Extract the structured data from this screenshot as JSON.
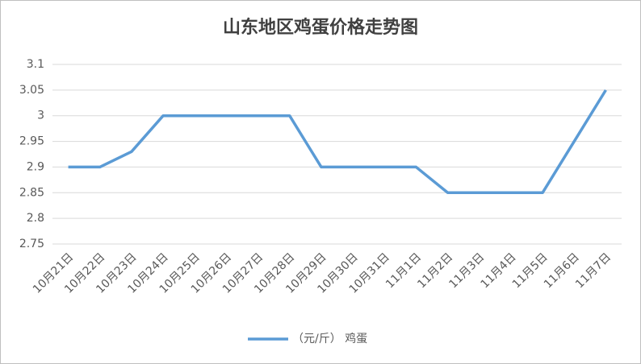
{
  "chart_data": {
    "type": "line",
    "title": "山东地区鸡蛋价格走势图",
    "categories": [
      "10月21日",
      "10月22日",
      "10月23日",
      "10月24日",
      "10月25日",
      "10月26日",
      "10月27日",
      "10月28日",
      "10月29日",
      "10月30日",
      "10月31日",
      "11月1日",
      "11月2日",
      "11月3日",
      "11月4日",
      "11月5日",
      "11月6日",
      "11月7日"
    ],
    "series": [
      {
        "name": "（元/斤） 鸡蛋",
        "color": "#5b9bd5",
        "values": [
          2.9,
          2.9,
          2.93,
          3,
          3,
          3,
          3,
          3,
          2.9,
          2.9,
          2.9,
          2.9,
          2.85,
          2.85,
          2.85,
          2.85,
          2.95,
          3.05
        ]
      }
    ],
    "ylim": [
      2.75,
      3.1
    ],
    "yticks": [
      2.75,
      2.8,
      2.85,
      2.9,
      2.95,
      3,
      3.05,
      3.1
    ],
    "grid": true,
    "legend": "bottom"
  }
}
